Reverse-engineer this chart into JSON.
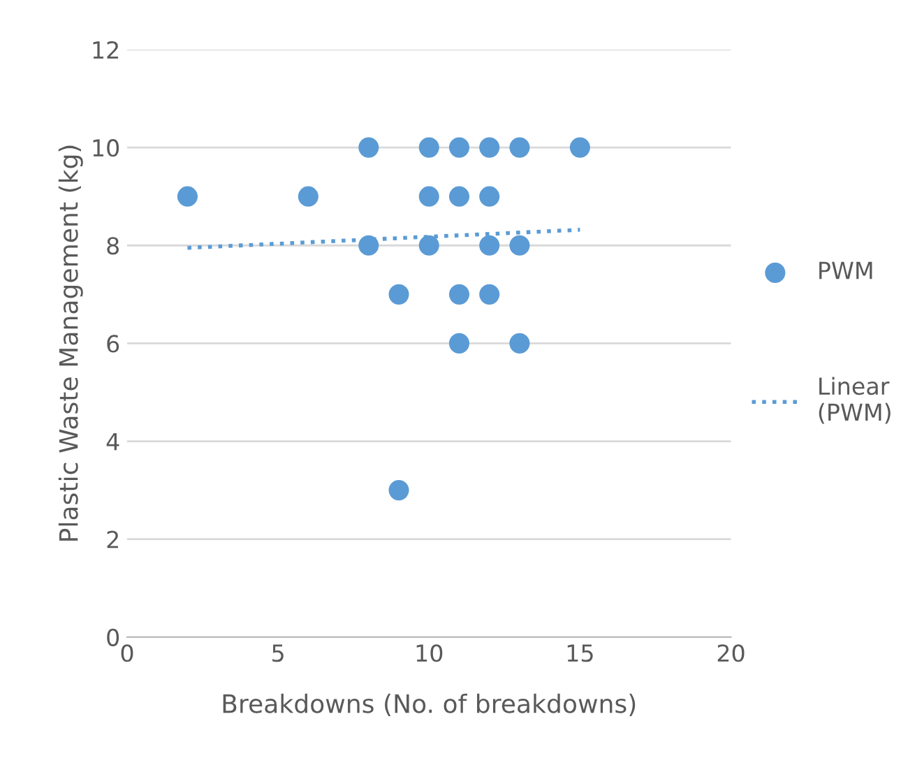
{
  "chart_data": {
    "type": "scatter",
    "xlabel": "Breakdowns (No. of breakdowns)",
    "ylabel": "Plastic Waste Management (kg)",
    "xlim": [
      0,
      20
    ],
    "xticks": [
      0,
      5,
      10,
      15,
      20
    ],
    "ylim": [
      0,
      12
    ],
    "yticks": [
      0,
      2,
      4,
      6,
      8,
      10,
      12
    ],
    "grid": "y",
    "legend": "right",
    "series": [
      {
        "name": "PWM",
        "marker": "circle",
        "color": "#5b9bd5",
        "x": [
          2,
          6,
          8,
          8,
          9,
          9,
          10,
          10,
          10,
          11,
          11,
          11,
          11,
          12,
          12,
          12,
          12,
          13,
          13,
          13,
          15
        ],
        "values": [
          9,
          9,
          10,
          8,
          7,
          3,
          10,
          9,
          8,
          10,
          9,
          7,
          6,
          10,
          9,
          8,
          7,
          10,
          8,
          6,
          10
        ]
      },
      {
        "name": "Linear (PWM)",
        "type": "line",
        "marker": "none",
        "line_style": "dotted",
        "color": "#5b9bd5",
        "x": [
          2,
          15
        ],
        "values": [
          7.95,
          8.32
        ]
      }
    ]
  }
}
